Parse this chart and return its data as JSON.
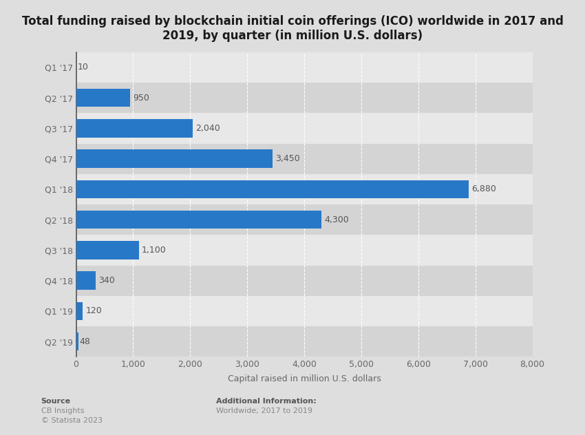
{
  "title": "Total funding raised by blockchain initial coin offerings (ICO) worldwide in 2017 and\n2019, by quarter (in million U.S. dollars)",
  "categories": [
    "Q1 '17",
    "Q2 '17",
    "Q3 '17",
    "Q4 '17",
    "Q1 '18",
    "Q2 '18",
    "Q3 '18",
    "Q4 '18",
    "Q1 '19",
    "Q2 '19"
  ],
  "values": [
    10,
    950,
    2040,
    3450,
    6880,
    4300,
    1100,
    340,
    120,
    48
  ],
  "bar_color": "#2878c8",
  "xlabel": "Capital raised in million U.S. dollars",
  "xlim": [
    0,
    8000
  ],
  "xticks": [
    0,
    1000,
    2000,
    3000,
    4000,
    5000,
    6000,
    7000,
    8000
  ],
  "xtick_labels": [
    "0",
    "1,000",
    "2,000",
    "3,000",
    "4,000",
    "5,000",
    "6,000",
    "7,000",
    "8,000"
  ],
  "value_labels": [
    "10",
    "950",
    "2,040",
    "3,450",
    "6,880",
    "4,300",
    "1,100",
    "340",
    "120",
    "48"
  ],
  "figure_bg": "#dedede",
  "plot_bg_light": "#e8e8e8",
  "plot_bg_dark": "#d8d8d8",
  "title_fontsize": 12,
  "axis_label_fontsize": 9,
  "tick_fontsize": 9,
  "value_label_fontsize": 9,
  "source_label": "Source",
  "source_body": "CB Insights\n© Statista 2023",
  "additional_label": "Additional Information:",
  "additional_body": "Worldwide; 2017 to 2019",
  "grid_color": "#ffffff",
  "bar_height": 0.6,
  "row_band_light": "#e8e8e8",
  "row_band_dark": "#d4d4d4"
}
